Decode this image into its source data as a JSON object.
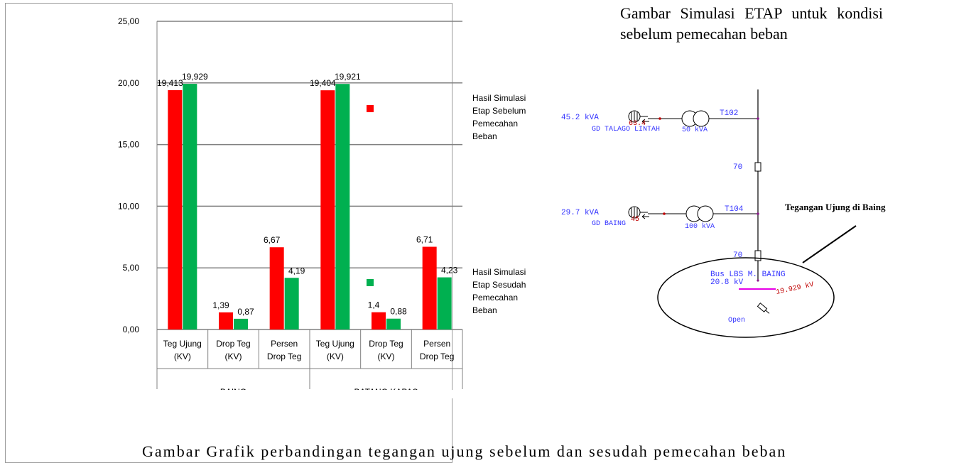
{
  "chart_data": {
    "type": "bar",
    "ylim": [
      0,
      25
    ],
    "yticks": [
      "0,00",
      "5,00",
      "10,00",
      "15,00",
      "20,00",
      "25,00"
    ],
    "categories": [
      "Teg Ujung (KV)",
      "Drop Teg (KV)",
      "Persen Drop Teg",
      "Teg Ujung (KV)",
      "Drop Teg (KV)",
      "Persen Drop Teg"
    ],
    "category_lines": [
      [
        "Teg Ujung",
        "(KV)"
      ],
      [
        "Drop Teg",
        "(KV)"
      ],
      [
        "Persen",
        "Drop Teg"
      ],
      [
        "Teg Ujung",
        "(KV)"
      ],
      [
        "Drop Teg",
        "(KV)"
      ],
      [
        "Persen",
        "Drop Teg"
      ]
    ],
    "group_labels": [
      "BAING",
      "BATANG KAPAS"
    ],
    "series": [
      {
        "name": "Hasil Simulasi Etap Sebelum Pemecahan Beban",
        "name_lines": [
          "Hasil Simulasi",
          "Etap Sebelum",
          "Pemecahan",
          "Beban"
        ],
        "color": "#ff0000",
        "values": [
          19.413,
          1.39,
          6.67,
          19.404,
          1.4,
          6.71
        ],
        "labels": [
          "19,413",
          "1,39",
          "6,67",
          "19,404",
          "1,4",
          "6,71"
        ]
      },
      {
        "name": "Hasil Simulasi Etap Sesudah Pemecahan Beban",
        "name_lines": [
          "Hasil Simulasi",
          "Etap Sesudah",
          "Pemecahan",
          "Beban"
        ],
        "color": "#00b050",
        "values": [
          19.929,
          0.87,
          4.19,
          19.921,
          0.88,
          4.23
        ],
        "labels": [
          "19,929",
          "0,87",
          "4,19",
          "19,921",
          "0,88",
          "4,23"
        ]
      }
    ],
    "grid": true,
    "legend": "right"
  },
  "etap_title": "Gambar Simulasi ETAP untuk kondisi sebelum pemecahan beban",
  "diagram": {
    "load1_kva": "45.2 kVA",
    "load1_val": "63.4",
    "load1_name": "GD TALAGO LINTAH",
    "trafo1_id": "T102",
    "trafo1_rating": "50 kVA",
    "cable1": "70",
    "load2_kva": "29.7 kVA",
    "load2_val": "45",
    "load2_name": "GD BAING",
    "trafo2_id": "T104",
    "trafo2_rating": "100 kVA",
    "cable2": "70",
    "bus_name": "Bus LBS M. BAING",
    "bus_kv": "20.8 kV",
    "bus_voltage": "19.929 kV",
    "switch_state": "Open",
    "annotation": "Tegangan Ujung di Baing"
  },
  "caption": "Gambar Grafik perbandingan tegangan ujung sebelum dan sesudah pemecahan beban"
}
